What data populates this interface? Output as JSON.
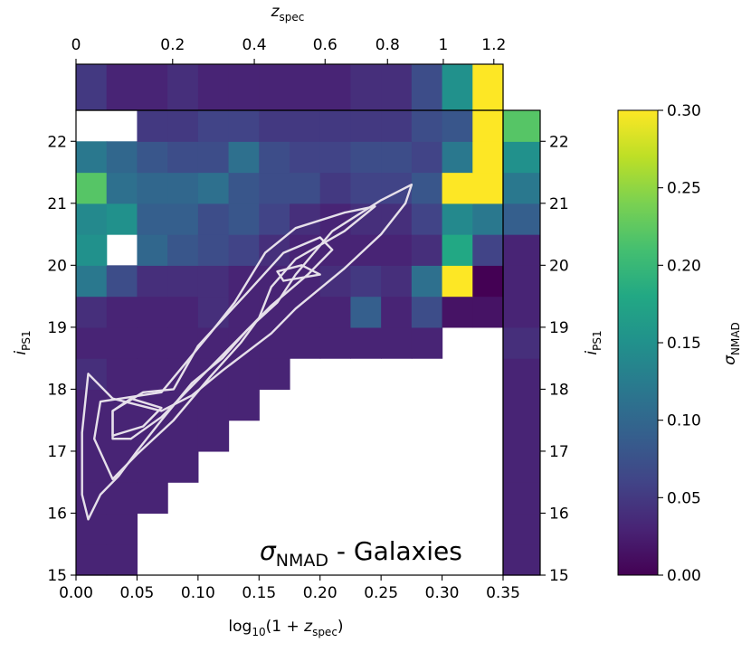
{
  "chart_data": {
    "type": "heatmap",
    "title": "σNMAD - Galaxies",
    "annotation": {
      "symbol": "σ",
      "subscript": "NMAD",
      "text": " - Galaxies"
    },
    "xlabel": {
      "prefix": "log",
      "base": "10",
      "argument_open": "(1 + ",
      "var": "z",
      "var_sub": "spec",
      "argument_close": ")"
    },
    "ylabel": {
      "var": "i",
      "sub": "PS1"
    },
    "top_xlabel": {
      "var": "z",
      "sub": "spec"
    },
    "colorbar_label": {
      "symbol": "σ",
      "sub": "NMAD"
    },
    "xlim": [
      0,
      0.35
    ],
    "ylim": [
      15,
      22.5
    ],
    "clim": [
      0,
      0.3
    ],
    "x_ticks": [
      "0.00",
      "0.05",
      "0.10",
      "0.15",
      "0.20",
      "0.25",
      "0.30",
      "0.35"
    ],
    "y_ticks": [
      "15",
      "16",
      "17",
      "18",
      "19",
      "20",
      "21",
      "22"
    ],
    "top_ticks": [
      "0",
      "0.2",
      "0.4",
      "0.6",
      "0.8",
      "1",
      "1.2"
    ],
    "colorbar_ticks": [
      "0.00",
      "0.05",
      "0.10",
      "0.15",
      "0.20",
      "0.25",
      "0.30"
    ],
    "x_bin_width": 0.025,
    "y_bin_width": 0.5,
    "x_bin_count": 14,
    "y_bin_count": 15,
    "cells_note": "rows start at i=15.0 going up in 0.5 mag bins; columns start at x=0.0 in 0.025 bins; null = empty",
    "cells": [
      [
        0.03,
        0.03,
        null,
        null,
        null,
        null,
        null,
        null,
        null,
        null,
        null,
        null,
        null,
        null
      ],
      [
        0.03,
        0.03,
        null,
        null,
        null,
        null,
        null,
        null,
        null,
        null,
        null,
        null,
        null,
        null
      ],
      [
        0.03,
        0.03,
        0.03,
        null,
        null,
        null,
        null,
        null,
        null,
        null,
        null,
        null,
        null,
        null
      ],
      [
        0.03,
        0.03,
        0.03,
        0.03,
        null,
        null,
        null,
        null,
        null,
        null,
        null,
        null,
        null,
        null
      ],
      [
        0.03,
        0.03,
        0.03,
        0.03,
        0.03,
        null,
        null,
        null,
        null,
        null,
        null,
        null,
        null,
        null
      ],
      [
        0.03,
        0.03,
        0.03,
        0.03,
        0.03,
        0.03,
        null,
        null,
        null,
        null,
        null,
        null,
        null,
        null
      ],
      [
        0.04,
        0.03,
        0.03,
        0.03,
        0.03,
        0.03,
        0.03,
        null,
        null,
        null,
        null,
        null,
        null,
        null
      ],
      [
        0.03,
        0.03,
        0.03,
        0.03,
        0.03,
        0.03,
        0.03,
        0.03,
        0.03,
        0.03,
        0.03,
        0.03,
        null,
        null
      ],
      [
        0.04,
        0.03,
        0.03,
        0.03,
        0.04,
        0.03,
        0.03,
        0.03,
        0.03,
        0.09,
        0.03,
        0.07,
        0.015,
        0.015
      ],
      [
        0.12,
        0.07,
        0.04,
        0.04,
        0.04,
        0.03,
        0.03,
        0.03,
        0.04,
        0.05,
        0.04,
        0.11,
        0.3,
        0.0
      ],
      [
        0.15,
        null,
        0.1,
        0.08,
        0.07,
        0.06,
        0.04,
        0.03,
        0.03,
        0.03,
        0.03,
        0.04,
        0.18,
        0.06
      ],
      [
        0.14,
        0.15,
        0.09,
        0.09,
        0.07,
        0.08,
        0.06,
        0.04,
        0.03,
        0.04,
        0.04,
        0.06,
        0.14,
        0.12
      ],
      [
        0.22,
        0.11,
        0.1,
        0.1,
        0.11,
        0.08,
        0.07,
        0.07,
        0.05,
        0.06,
        0.06,
        0.08,
        0.3,
        0.3
      ],
      [
        0.12,
        0.1,
        0.08,
        0.07,
        0.07,
        0.11,
        0.07,
        0.06,
        0.06,
        0.07,
        0.07,
        0.06,
        0.12,
        0.3
      ],
      [
        null,
        null,
        0.05,
        0.05,
        0.06,
        0.06,
        0.05,
        0.05,
        0.05,
        0.05,
        0.05,
        0.07,
        0.08,
        0.3
      ]
    ],
    "top_marginal": [
      0.05,
      0.03,
      0.03,
      0.04,
      0.03,
      0.03,
      0.03,
      0.03,
      0.03,
      0.04,
      0.04,
      0.07,
      0.15,
      0.3
    ],
    "right_marginal": [
      0.03,
      0.03,
      0.03,
      0.03,
      0.03,
      0.03,
      0.03,
      0.04,
      0.03,
      0.03,
      0.03,
      0.09,
      0.12,
      0.15,
      0.22
    ],
    "contours_note": "density contours in data units [x, i]",
    "contours": [
      [
        [
          0.01,
          15.9
        ],
        [
          0.02,
          16.3
        ],
        [
          0.035,
          16.6
        ],
        [
          0.05,
          17.0
        ],
        [
          0.07,
          17.5
        ],
        [
          0.095,
          18.1
        ],
        [
          0.12,
          18.5
        ],
        [
          0.14,
          18.95
        ],
        [
          0.165,
          19.4
        ],
        [
          0.18,
          19.85
        ],
        [
          0.21,
          20.55
        ],
        [
          0.25,
          21.05
        ],
        [
          0.275,
          21.3
        ],
        [
          0.27,
          21.0
        ],
        [
          0.25,
          20.5
        ],
        [
          0.22,
          19.95
        ],
        [
          0.18,
          19.3
        ],
        [
          0.16,
          18.9
        ],
        [
          0.12,
          18.3
        ],
        [
          0.095,
          17.9
        ],
        [
          0.07,
          17.65
        ],
        [
          0.03,
          17.85
        ],
        [
          0.01,
          18.25
        ],
        [
          0.005,
          17.3
        ],
        [
          0.005,
          16.3
        ],
        [
          0.01,
          15.9
        ]
      ],
      [
        [
          0.03,
          16.55
        ],
        [
          0.05,
          16.95
        ],
        [
          0.08,
          17.5
        ],
        [
          0.11,
          18.2
        ],
        [
          0.135,
          18.75
        ],
        [
          0.15,
          19.15
        ],
        [
          0.16,
          19.65
        ],
        [
          0.18,
          20.1
        ],
        [
          0.22,
          20.55
        ],
        [
          0.245,
          20.95
        ],
        [
          0.22,
          20.85
        ],
        [
          0.18,
          20.6
        ],
        [
          0.155,
          20.2
        ],
        [
          0.13,
          19.4
        ],
        [
          0.11,
          18.9
        ],
        [
          0.07,
          17.95
        ],
        [
          0.02,
          17.8
        ],
        [
          0.015,
          17.2
        ],
        [
          0.03,
          16.55
        ]
      ],
      [
        [
          0.045,
          17.2
        ],
        [
          0.07,
          17.55
        ],
        [
          0.09,
          17.95
        ],
        [
          0.12,
          18.55
        ],
        [
          0.14,
          18.95
        ],
        [
          0.16,
          19.35
        ],
        [
          0.19,
          19.85
        ],
        [
          0.21,
          20.25
        ],
        [
          0.2,
          20.45
        ],
        [
          0.17,
          20.2
        ],
        [
          0.14,
          19.55
        ],
        [
          0.1,
          18.7
        ],
        [
          0.08,
          18.0
        ],
        [
          0.055,
          17.95
        ],
        [
          0.03,
          17.65
        ],
        [
          0.03,
          17.2
        ],
        [
          0.045,
          17.2
        ]
      ],
      [
        [
          0.03,
          17.25
        ],
        [
          0.055,
          17.4
        ],
        [
          0.07,
          17.7
        ],
        [
          0.045,
          17.85
        ],
        [
          0.03,
          17.65
        ],
        [
          0.03,
          17.25
        ]
      ],
      [
        [
          0.17,
          19.75
        ],
        [
          0.2,
          19.85
        ],
        [
          0.185,
          20.0
        ],
        [
          0.165,
          19.9
        ],
        [
          0.17,
          19.75
        ]
      ]
    ]
  }
}
